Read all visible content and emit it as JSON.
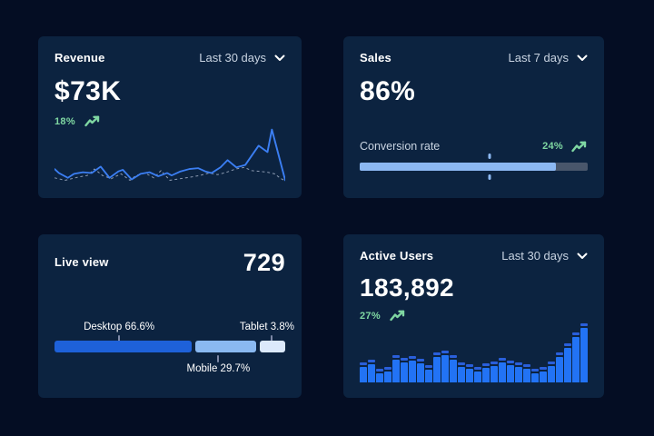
{
  "colors": {
    "page_bg": "#040D23",
    "card_bg": "#0C2340",
    "text_primary": "#FFFFFF",
    "text_secondary": "#C9D4E2",
    "green": "#7FD7A2",
    "line_blue": "#3B7EF2",
    "line_dashed": "#8E9CB3",
    "progress_fill": "#8CB8F2",
    "progress_track": "#49566B",
    "desktop_blue": "#1E61D9",
    "mobile_blue": "#8AB9F1",
    "tablet_blue": "#DCE9FB",
    "bar_blue": "#2273F5",
    "bar_cap": "#2A5FDB"
  },
  "revenue": {
    "title": "Revenue",
    "range": "Last 30 days",
    "value": "$73K",
    "delta": "18%"
  },
  "sales": {
    "title": "Sales",
    "range": "Last 7 days",
    "value": "86%",
    "metric_label": "Conversion rate",
    "delta": "24%"
  },
  "live_view": {
    "title": "Live view",
    "value": "729",
    "labels": {
      "desktop": "Desktop 66.6%",
      "mobile": "Mobile 29.7%",
      "tablet": "Tablet 3.8%"
    }
  },
  "active_users": {
    "title": "Active Users",
    "range": "Last 30 days",
    "value": "183,892",
    "delta": "27%"
  },
  "chart_data": [
    {
      "card": "Revenue",
      "type": "line",
      "title": "Revenue trend",
      "range": "Last 30 days",
      "summary_value": "$73K",
      "delta_pct": 18,
      "axes": "hidden",
      "grid": false,
      "legend": "none",
      "series": [
        {
          "name": "current",
          "style": "solid",
          "points": [
            [
              0,
              52
            ],
            [
              5,
              57
            ],
            [
              15,
              63
            ],
            [
              22,
              58
            ],
            [
              32,
              56
            ],
            [
              42,
              57
            ],
            [
              52,
              49
            ],
            [
              62,
              63
            ],
            [
              72,
              55
            ],
            [
              77,
              53
            ],
            [
              87,
              65
            ],
            [
              97,
              58
            ],
            [
              107,
              56
            ],
            [
              117,
              61
            ],
            [
              127,
              57
            ],
            [
              132,
              60
            ],
            [
              142,
              55
            ],
            [
              152,
              52
            ],
            [
              162,
              51
            ],
            [
              170,
              55
            ],
            [
              177,
              57
            ],
            [
              187,
              50
            ],
            [
              195,
              41
            ],
            [
              205,
              50
            ],
            [
              215,
              47
            ],
            [
              230,
              23
            ],
            [
              240,
              31
            ],
            [
              245,
              3
            ],
            [
              260,
              66
            ]
          ]
        },
        {
          "name": "previous",
          "style": "dashed",
          "points": [
            [
              0,
              63
            ],
            [
              12,
              66
            ],
            [
              27,
              62
            ],
            [
              37,
              60
            ],
            [
              45,
              52
            ],
            [
              54,
              60
            ],
            [
              64,
              64
            ],
            [
              75,
              58
            ],
            [
              85,
              66
            ],
            [
              92,
              60
            ],
            [
              102,
              57
            ],
            [
              112,
              63
            ],
            [
              120,
              54
            ],
            [
              130,
              66
            ],
            [
              142,
              64
            ],
            [
              154,
              62
            ],
            [
              164,
              60
            ],
            [
              174,
              57
            ],
            [
              184,
              59
            ],
            [
              194,
              56
            ],
            [
              204,
              52
            ],
            [
              214,
              50
            ],
            [
              222,
              54
            ],
            [
              232,
              55
            ],
            [
              240,
              56
            ],
            [
              248,
              58
            ],
            [
              254,
              63
            ],
            [
              260,
              67
            ]
          ]
        }
      ]
    },
    {
      "card": "Sales",
      "type": "progress",
      "label": "Conversion rate",
      "percent": 86,
      "delta_pct": 24,
      "marker_pct": 57,
      "range": "Last 7 days"
    },
    {
      "card": "Live view",
      "type": "stacked-bar",
      "total": 729,
      "segments": [
        {
          "label": "Desktop",
          "pct": 66.6
        },
        {
          "label": "Mobile",
          "pct": 29.7
        },
        {
          "label": "Tablet",
          "pct": 3.8
        }
      ]
    },
    {
      "card": "Active Users",
      "type": "bar",
      "range": "Last 30 days",
      "summary_value": "183,892",
      "delta_pct": 27,
      "axes": "hidden",
      "grid": false,
      "unit": "relative height",
      "values": [
        17,
        20,
        10,
        12,
        25,
        22,
        24,
        21,
        14,
        28,
        30,
        25,
        17,
        15,
        12,
        16,
        18,
        22,
        19,
        17,
        15,
        10,
        12,
        18,
        28,
        38,
        50,
        60
      ]
    }
  ]
}
